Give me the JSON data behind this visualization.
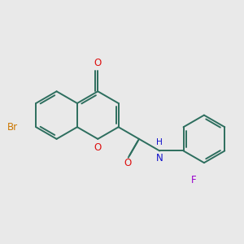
{
  "background_color": "#e9e9e9",
  "bond_color": "#2d6e5e",
  "bond_width": 1.4,
  "dbo": 0.075,
  "atom_colors": {
    "O": "#dd1111",
    "N": "#1111cc",
    "Br": "#cc7700",
    "F": "#9900cc"
  },
  "font_size": 8.5,
  "shorten": 0.11
}
